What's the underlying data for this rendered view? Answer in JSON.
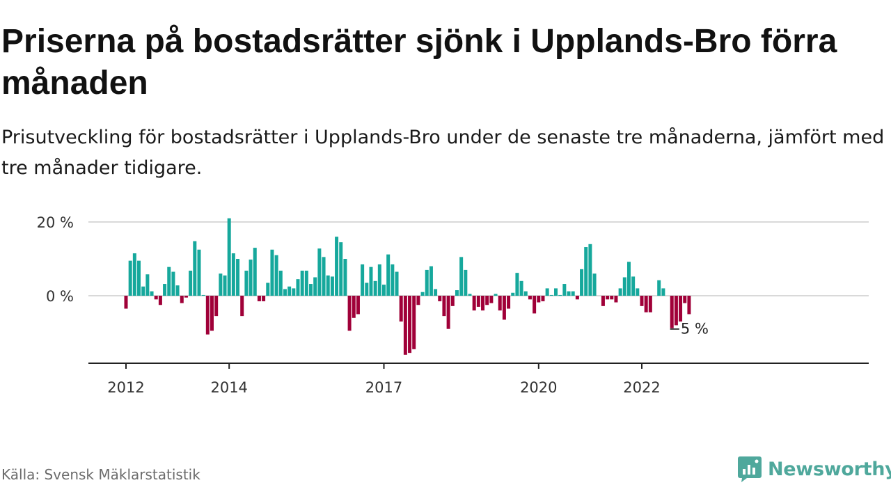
{
  "header": {
    "title": "Priserna på bostadsrätter sjönk i Upplands-Bro förra månaden",
    "subtitle": "Prisutveckling för bostadsrätter i Upplands-Bro under de senaste tre månaderna, jämfört med tre månader tidigare."
  },
  "footer": {
    "source": "Källa: Svensk Mäklarstatistik",
    "brand": "Newsworthy"
  },
  "colors": {
    "positive": "#16a89c",
    "negative": "#a00038",
    "brand": "#4fa89c",
    "grid": "#d9d9d9",
    "axis": "#222222"
  },
  "chart_data": {
    "type": "bar",
    "x_start": "2012-01",
    "frequency": "monthly",
    "ylim": [
      -18,
      22
    ],
    "y_ticks": [
      {
        "value": 20,
        "label": "20 %"
      },
      {
        "value": 0,
        "label": "0 %"
      }
    ],
    "x_ticks": [
      {
        "value": "2012-01",
        "label": "2012"
      },
      {
        "value": "2014-01",
        "label": "2014"
      },
      {
        "value": "2017-01",
        "label": "2017"
      },
      {
        "value": "2020-01",
        "label": "2020"
      },
      {
        "value": "2022-01",
        "label": "2022"
      }
    ],
    "last_value_label": "−5 %",
    "grid": true,
    "values": [
      -3.5,
      9.5,
      11.5,
      9.5,
      2.5,
      5.8,
      1.2,
      -1.0,
      -2.5,
      3.2,
      7.8,
      6.5,
      2.8,
      -2.0,
      -0.5,
      6.8,
      14.8,
      12.5,
      0.2,
      -10.5,
      -9.5,
      -5.5,
      6.0,
      5.5,
      21.0,
      11.5,
      10.0,
      -5.5,
      6.8,
      9.8,
      13.0,
      -1.5,
      -1.5,
      3.5,
      12.5,
      11.0,
      6.8,
      1.8,
      2.5,
      2.0,
      4.5,
      6.8,
      6.8,
      3.2,
      5.0,
      12.8,
      10.5,
      5.5,
      5.2,
      16.0,
      14.5,
      10.0,
      -9.5,
      -6.0,
      -5.0,
      8.5,
      3.5,
      7.8,
      4.0,
      8.5,
      3.0,
      11.2,
      8.5,
      6.5,
      -7.0,
      -16.0,
      -15.5,
      -14.5,
      -2.5,
      1.0,
      7.0,
      8.0,
      1.8,
      -1.5,
      -5.5,
      -9.0,
      -2.8,
      1.5,
      10.5,
      7.0,
      0.5,
      -4.0,
      -3.0,
      -4.0,
      -2.5,
      -2.0,
      0.5,
      -4.0,
      -6.5,
      -3.5,
      0.8,
      6.2,
      4.0,
      1.2,
      -1.0,
      -4.8,
      -1.8,
      -1.5,
      2.0,
      0.2,
      2.0,
      0.2,
      3.2,
      1.2,
      1.2,
      -1.0,
      7.2,
      13.2,
      14.0,
      6.0,
      0.0,
      -2.8,
      -1.0,
      -1.0,
      -1.8,
      2.0,
      5.0,
      9.2,
      5.2,
      2.0,
      -2.8,
      -4.5,
      -4.5,
      0.0,
      4.2,
      2.0,
      0.0,
      -8.8,
      -8.0,
      -7.0,
      -2.0,
      -5.0
    ]
  }
}
